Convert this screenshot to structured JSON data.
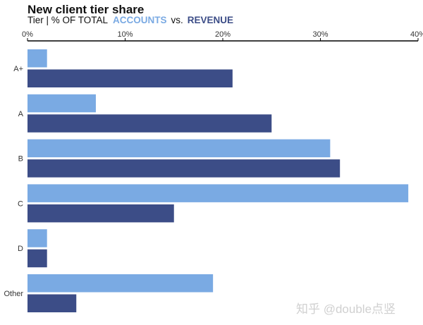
{
  "chart_data": {
    "type": "bar",
    "orientation": "horizontal",
    "title": "New client tier share",
    "subtitle": {
      "prefix": "Tier | % OF TOTAL",
      "series_a_label": "ACCOUNTS",
      "connector": "vs.",
      "series_b_label": "REVENUE"
    },
    "categories": [
      "A+",
      "A",
      "B",
      "C",
      "D",
      "Other"
    ],
    "series": [
      {
        "name": "ACCOUNTS",
        "color": "#7aaae3",
        "values": [
          2,
          7,
          31,
          39,
          2,
          19
        ]
      },
      {
        "name": "REVENUE",
        "color": "#3c4d87",
        "values": [
          21,
          25,
          32,
          15,
          2,
          5
        ]
      }
    ],
    "xlim": [
      0,
      40
    ],
    "xticks": [
      0,
      10,
      20,
      30,
      40
    ],
    "tick_format": "%",
    "axis_position": "top",
    "grid": false
  },
  "watermark": "知乎 @double点竖"
}
